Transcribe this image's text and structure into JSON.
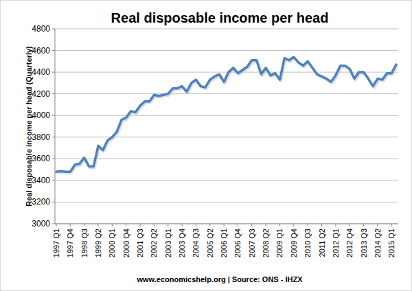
{
  "chart_data": {
    "type": "line",
    "title": "Real disposable income per head",
    "y_label": "Real disposable income per head (Quarterly)",
    "source": "www.economicshelp.org | Source: ONS - IHZX",
    "categories": [
      "1997 Q1",
      null,
      null,
      "1997 Q4",
      null,
      null,
      "1998 Q3",
      null,
      null,
      "1999 Q2",
      null,
      null,
      "2000 Q1",
      null,
      null,
      "2000 Q4",
      null,
      null,
      "2001 Q3",
      null,
      null,
      "2002 Q2",
      null,
      null,
      "2003 Q1",
      null,
      null,
      "2003 Q4",
      null,
      null,
      "2004 Q3",
      null,
      null,
      "2005 Q2",
      null,
      null,
      "2006 Q1",
      null,
      null,
      "2006 Q4",
      null,
      null,
      "2007 Q3",
      null,
      null,
      "2008 Q2",
      null,
      null,
      "2009 Q1",
      null,
      null,
      "2009 Q4",
      null,
      null,
      "2010 Q3",
      null,
      null,
      "2011 Q2",
      null,
      null,
      "2012 Q1",
      null,
      null,
      "2012 Q4",
      null,
      null,
      "2013 Q3",
      null,
      null,
      "2014 Q2",
      null,
      null,
      "2015 Q1",
      null
    ],
    "values": [
      3480,
      3485,
      3480,
      3480,
      3545,
      3555,
      3610,
      3530,
      3530,
      3720,
      3680,
      3770,
      3800,
      3850,
      3960,
      3980,
      4040,
      4030,
      4090,
      4130,
      4130,
      4190,
      4180,
      4190,
      4200,
      4250,
      4250,
      4270,
      4220,
      4300,
      4330,
      4270,
      4260,
      4330,
      4360,
      4380,
      4310,
      4400,
      4440,
      4390,
      4420,
      4450,
      4510,
      4510,
      4380,
      4440,
      4370,
      4390,
      4330,
      4530,
      4510,
      4540,
      4490,
      4460,
      4500,
      4440,
      4380,
      4360,
      4340,
      4310,
      4370,
      4460,
      4460,
      4430,
      4340,
      4400,
      4400,
      4340,
      4270,
      4340,
      4330,
      4390,
      4390,
      4470
    ],
    "color": "#4f81bd",
    "ylim": [
      3000,
      4800
    ],
    "yticks": [
      3000,
      3200,
      3400,
      3600,
      3800,
      4000,
      4200,
      4400,
      4600,
      4800
    ],
    "grid": true
  }
}
